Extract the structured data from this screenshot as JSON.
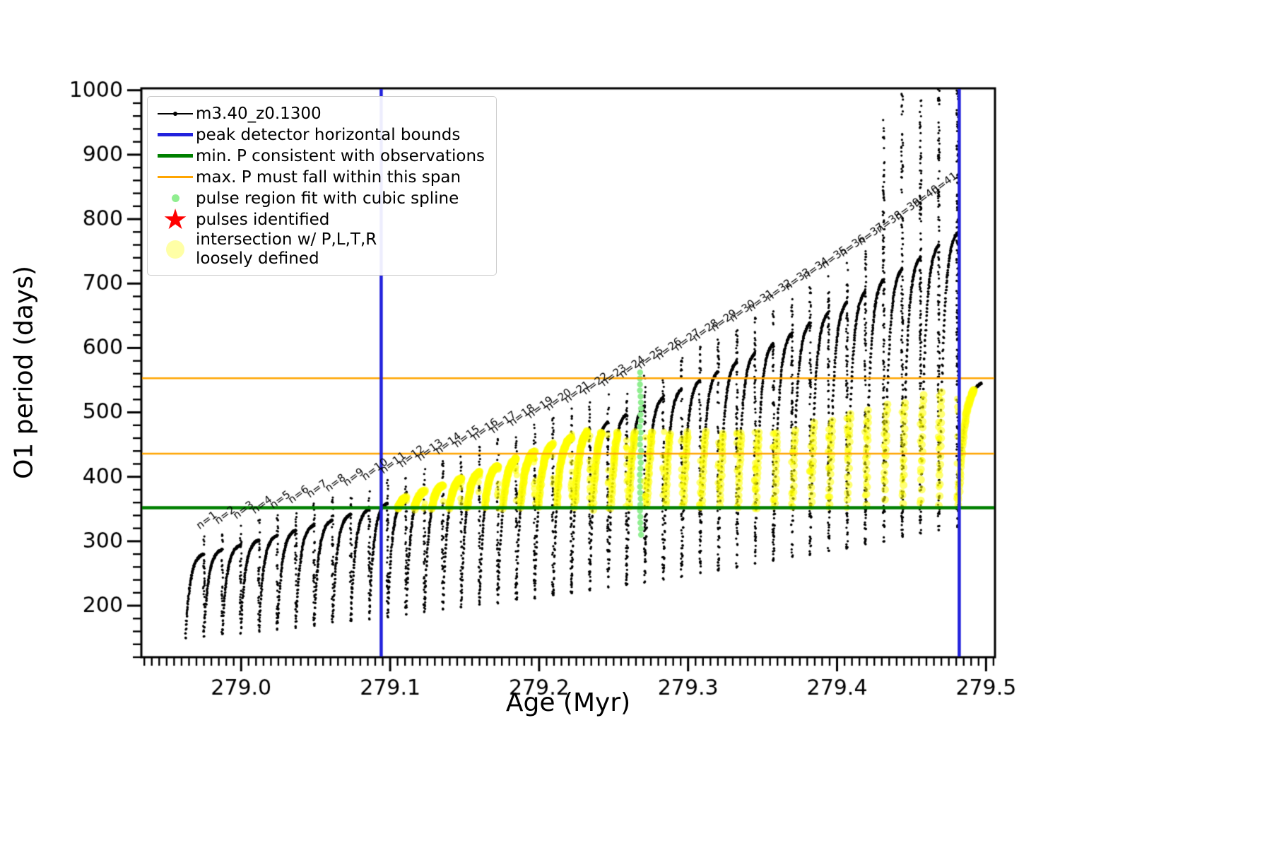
{
  "figure": {
    "bg": "#ffffff"
  },
  "axis": {
    "xlabel": "Age (Myr)",
    "ylabel": "O1 period (days)"
  },
  "legend": {
    "items": [
      {
        "label": "m3.40_z0.1300"
      },
      {
        "label": "peak detector horizontal bounds"
      },
      {
        "label": "min. P consistent with observations"
      },
      {
        "label": "max. P must fall within this span"
      },
      {
        "label": "pulse region fit with cubic spline"
      },
      {
        "label": "pulses identified"
      },
      {
        "label": "intersection w/ P,L,T,R",
        "label2": "loosely defined"
      }
    ]
  },
  "chart_data": {
    "type": "scatter",
    "title": "",
    "xlabel": "Age (Myr)",
    "ylabel": "O1 period (days)",
    "xlim": [
      278.933,
      279.506
    ],
    "ylim": [
      120,
      1003
    ],
    "x_ticks": [
      279.0,
      279.1,
      279.2,
      279.3,
      279.4,
      279.5
    ],
    "x_tick_labels": [
      "279.0",
      "279.1",
      "279.2",
      "279.3",
      "279.4",
      "279.5"
    ],
    "y_ticks": [
      200,
      300,
      400,
      500,
      600,
      700,
      800,
      900,
      1000
    ],
    "y_tick_labels": [
      "200",
      "300",
      "400",
      "500",
      "600",
      "700",
      "800",
      "900",
      "1000"
    ],
    "x_minor_step": 0.005,
    "y_minor_step": 20,
    "grid": false,
    "legend_position": "upper left",
    "series_label": "m3.40_z0.1300",
    "colors": {
      "data": "#000000",
      "blue_vline": "#2222dd",
      "green_hline": "#008000",
      "orange_hline": "#ffa500",
      "spline_dots": "#90ee90",
      "yellow": "#ffff00",
      "star": "#ff0000"
    },
    "vlines": {
      "xs": [
        279.094,
        279.482
      ],
      "width": 4.5,
      "label": "peak detector horizontal bounds"
    },
    "green_hline": {
      "y": 352,
      "width": 4.5,
      "label": "min. P consistent with observations"
    },
    "orange_hlines": {
      "ys": [
        436,
        553
      ],
      "width": 2.5,
      "label": "max. P must fall within this span"
    },
    "spline_column": {
      "x": 279.268,
      "y_min": 310,
      "y_max": 562,
      "n_dots": 28,
      "label": "pulse region fit with cubic spline"
    },
    "yellow_floor": 350,
    "pulses": [
      {
        "n": 1,
        "label": "n=1",
        "x": 278.975,
        "base": 150,
        "peak": 280,
        "spike": 310,
        "cap": null,
        "label_y": 318
      },
      {
        "n": 2,
        "label": "n=2",
        "x": 278.9873,
        "base": 153,
        "peak": 287,
        "spike": 318,
        "cap": null,
        "label_y": 326
      },
      {
        "n": 3,
        "label": "n=3",
        "x": 278.9997,
        "base": 156,
        "peak": 294,
        "spike": 326,
        "cap": null,
        "label_y": 334
      },
      {
        "n": 4,
        "label": "n=4",
        "x": 279.012,
        "base": 158,
        "peak": 302,
        "spike": 334,
        "cap": null,
        "label_y": 342
      },
      {
        "n": 5,
        "label": "n=5",
        "x": 279.0243,
        "base": 161,
        "peak": 309,
        "spike": 342,
        "cap": null,
        "label_y": 350
      },
      {
        "n": 6,
        "label": "n=6",
        "x": 279.0367,
        "base": 164,
        "peak": 317,
        "spike": 350,
        "cap": null,
        "label_y": 358
      },
      {
        "n": 7,
        "label": "n=7",
        "x": 279.049,
        "base": 167,
        "peak": 325,
        "spike": 359,
        "cap": null,
        "label_y": 367
      },
      {
        "n": 8,
        "label": "n=8",
        "x": 279.0613,
        "base": 170,
        "peak": 333,
        "spike": 368,
        "cap": null,
        "label_y": 376
      },
      {
        "n": 9,
        "label": "n=9",
        "x": 279.0737,
        "base": 174,
        "peak": 342,
        "spike": 377,
        "cap": null,
        "label_y": 385
      },
      {
        "n": 10,
        "label": "n=10",
        "x": 279.086,
        "base": 177,
        "peak": 350,
        "spike": 386,
        "cap": null,
        "label_y": 394
      },
      {
        "n": 11,
        "label": "n=11",
        "x": 279.0983,
        "base": 180,
        "peak": 359,
        "spike": 396,
        "cap": null,
        "label_y": 404
      },
      {
        "n": 12,
        "label": "n=12",
        "x": 279.1107,
        "base": 183,
        "peak": 368,
        "spike": 406,
        "cap": 374,
        "label_y": 414
      },
      {
        "n": 13,
        "label": "n=13",
        "x": 279.123,
        "base": 187,
        "peak": 378,
        "spike": 416,
        "cap": 384,
        "label_y": 424
      },
      {
        "n": 14,
        "label": "n=14",
        "x": 279.1353,
        "base": 190,
        "peak": 387,
        "spike": 426,
        "cap": 393,
        "label_y": 434
      },
      {
        "n": 15,
        "label": "n=15",
        "x": 279.1477,
        "base": 194,
        "peak": 397,
        "spike": 437,
        "cap": 403,
        "label_y": 445
      },
      {
        "n": 16,
        "label": "n=16",
        "x": 279.16,
        "base": 197,
        "peak": 407,
        "spike": 448,
        "cap": 413,
        "label_y": 456
      },
      {
        "n": 17,
        "label": "n=17",
        "x": 279.1723,
        "base": 201,
        "peak": 417,
        "spike": 459,
        "cap": 423,
        "label_y": 467
      },
      {
        "n": 18,
        "label": "n=18",
        "x": 279.1847,
        "base": 205,
        "peak": 428,
        "spike": 470,
        "cap": 434,
        "label_y": 478
      },
      {
        "n": 19,
        "label": "n=19",
        "x": 279.197,
        "base": 209,
        "peak": 439,
        "spike": 482,
        "cap": 445,
        "label_y": 490
      },
      {
        "n": 20,
        "label": "n=20",
        "x": 279.2093,
        "base": 212,
        "peak": 450,
        "spike": 494,
        "cap": 456,
        "label_y": 502
      },
      {
        "n": 21,
        "label": "n=21",
        "x": 279.2217,
        "base": 216,
        "peak": 461,
        "spike": 506,
        "cap": 467,
        "label_y": 514
      },
      {
        "n": 22,
        "label": "n=22",
        "x": 279.234,
        "base": 220,
        "peak": 473,
        "spike": 519,
        "cap": 470,
        "label_y": 527
      },
      {
        "n": 23,
        "label": "n=23",
        "x": 279.2463,
        "base": 225,
        "peak": 485,
        "spike": 532,
        "cap": 470,
        "label_y": 540
      },
      {
        "n": 24,
        "label": "n=24",
        "x": 279.2587,
        "base": 229,
        "peak": 497,
        "spike": 545,
        "cap": 470,
        "label_y": 553
      },
      {
        "n": 25,
        "label": "n=25",
        "x": 279.271,
        "base": 233,
        "peak": 510,
        "spike": 559,
        "cap": 470,
        "label_y": 567
      },
      {
        "n": 26,
        "label": "n=26",
        "x": 279.2833,
        "base": 237,
        "peak": 523,
        "spike": 573,
        "cap": 470,
        "label_y": 581
      },
      {
        "n": 27,
        "label": "n=27",
        "x": 279.2957,
        "base": 242,
        "peak": 536,
        "spike": 587,
        "cap": 470,
        "label_y": 595
      },
      {
        "n": 28,
        "label": "n=28",
        "x": 279.308,
        "base": 246,
        "peak": 550,
        "spike": 602,
        "cap": 470,
        "label_y": 610
      },
      {
        "n": 29,
        "label": "n=29",
        "x": 279.3203,
        "base": 251,
        "peak": 564,
        "spike": 617,
        "cap": 470,
        "label_y": 625
      },
      {
        "n": 30,
        "label": "n=30",
        "x": 279.3327,
        "base": 255,
        "peak": 578,
        "spike": 632,
        "cap": 470,
        "label_y": 640
      },
      {
        "n": 31,
        "label": "n=31",
        "x": 279.345,
        "base": 260,
        "peak": 592,
        "spike": 648,
        "cap": 470,
        "label_y": 656
      },
      {
        "n": 32,
        "label": "n=32",
        "x": 279.3573,
        "base": 265,
        "peak": 607,
        "spike": 664,
        "cap": 470,
        "label_y": 672
      },
      {
        "n": 33,
        "label": "n=33",
        "x": 279.3697,
        "base": 270,
        "peak": 623,
        "spike": 681,
        "cap": 470,
        "label_y": 689
      },
      {
        "n": 34,
        "label": "n=34",
        "x": 279.382,
        "base": 275,
        "peak": 639,
        "spike": 698,
        "cap": 478,
        "label_y": 706
      },
      {
        "n": 35,
        "label": "n=35",
        "x": 279.3943,
        "base": 280,
        "peak": 655,
        "spike": 715,
        "cap": 485,
        "label_y": 723
      },
      {
        "n": 36,
        "label": "n=36",
        "x": 279.4067,
        "base": 285,
        "peak": 671,
        "spike": 733,
        "cap": 493,
        "label_y": 741
      },
      {
        "n": 37,
        "label": "n=37",
        "x": 279.419,
        "base": 290,
        "peak": 688,
        "spike": 751,
        "cap": 500,
        "label_y": 759
      },
      {
        "n": 38,
        "label": "n=38",
        "x": 279.4313,
        "base": 296,
        "peak": 706,
        "spike": 960,
        "cap": 508,
        "label_y": 778
      },
      {
        "n": 39,
        "label": "n=39",
        "x": 279.4437,
        "base": 301,
        "peak": 723,
        "spike": 1010,
        "cap": 515,
        "label_y": 798
      },
      {
        "n": 40,
        "label": "n=40",
        "x": 279.456,
        "base": 307,
        "peak": 741,
        "spike": 1060,
        "cap": 523,
        "label_y": 818
      },
      {
        "n": 41,
        "label": "n=41",
        "x": 279.4683,
        "base": 313,
        "peak": 760,
        "spike": 1090,
        "cap": 530,
        "label_y": 838
      },
      {
        "n": 42,
        "label": null,
        "x": 279.4807,
        "base": 318,
        "peak": 779,
        "spike": 1100,
        "cap": 532,
        "label_y": null
      },
      {
        "n": 43,
        "label": null,
        "x": 279.497,
        "base": 322,
        "peak": 545,
        "spike": null,
        "cap": 535,
        "label_y": null
      }
    ]
  }
}
